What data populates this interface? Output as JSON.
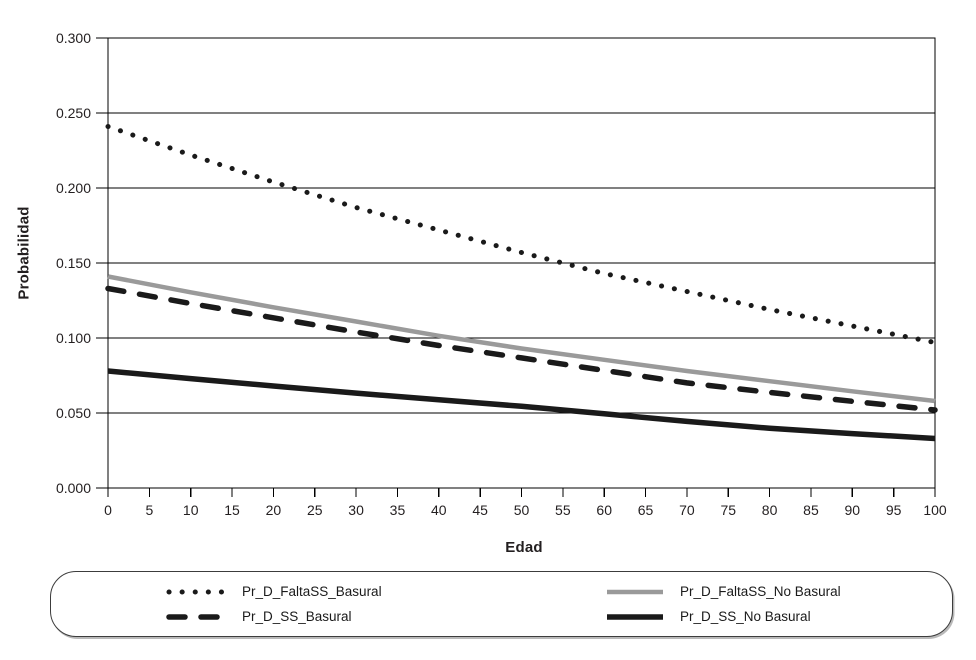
{
  "page": {
    "background": "#ffffff"
  },
  "colors": {
    "axis": "#000000",
    "text": "#231f20",
    "line_dark": "#1a1a1a",
    "line_gray": "#9a9a9a",
    "legend_border": "#3c3c3c"
  },
  "chart_data": {
    "type": "line",
    "title": "",
    "xlabel": "Edad",
    "ylabel": "Probabilidad",
    "xlim": [
      0,
      100
    ],
    "ylim": [
      0,
      0.3
    ],
    "x_ticks": [
      0,
      5,
      10,
      15,
      20,
      25,
      30,
      35,
      40,
      45,
      50,
      55,
      60,
      65,
      70,
      75,
      80,
      85,
      90,
      95,
      100
    ],
    "y_tick_labels": [
      "0.000",
      "0.050",
      "0.100",
      "0.150",
      "0.200",
      "0.250",
      "0.300"
    ],
    "grid": "horizontal gridlines only, framed plot area, no vertical gridlines",
    "legend_position": "bottom, boxed with rounded corners, two columns",
    "x": [
      0,
      10,
      20,
      30,
      40,
      50,
      60,
      70,
      80,
      90,
      100
    ],
    "series": [
      {
        "name": "Pr_D_FaltaSS_Basural",
        "line_style": "dotted",
        "color": "#1a1a1a",
        "stroke_width": 5,
        "values": [
          0.241,
          0.222,
          0.204,
          0.187,
          0.172,
          0.157,
          0.143,
          0.131,
          0.119,
          0.108,
          0.097
        ]
      },
      {
        "name": "Pr_D_SS_Basural",
        "line_style": "dashed",
        "color": "#1a1a1a",
        "stroke_width": 5.5,
        "values": [
          0.133,
          0.123,
          0.1135,
          0.104,
          0.095,
          0.0867,
          0.0784,
          0.0701,
          0.0637,
          0.0578,
          0.052
        ]
      },
      {
        "name": "Pr_D_FaltaSS_No Basural",
        "line_style": "solid",
        "color": "#9a9a9a",
        "stroke_width": 4.5,
        "values": [
          0.141,
          0.1305,
          0.1205,
          0.111,
          0.1015,
          0.093,
          0.0855,
          0.078,
          0.0712,
          0.0645,
          0.058
        ]
      },
      {
        "name": "Pr_D_SS_No Basural",
        "line_style": "solid",
        "color": "#1a1a1a",
        "stroke_width": 5.5,
        "values": [
          0.078,
          0.0729,
          0.068,
          0.0633,
          0.0588,
          0.0545,
          0.0495,
          0.0444,
          0.0398,
          0.0363,
          0.033
        ]
      }
    ],
    "draw_order": [
      0,
      2,
      1,
      3
    ],
    "legend_order": [
      0,
      1,
      2,
      3
    ]
  }
}
